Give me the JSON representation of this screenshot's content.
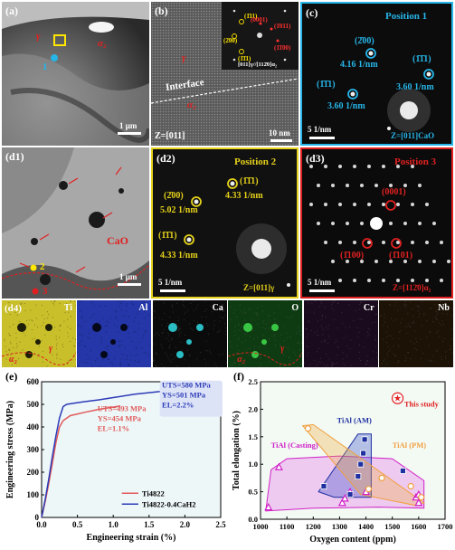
{
  "panels": {
    "a": {
      "label": "(a)",
      "gamma": "γ",
      "alpha2": "α₂",
      "marker": "1",
      "scale": "1 μm"
    },
    "b": {
      "label": "(b)",
      "gamma": "γ",
      "alpha2": "α₂",
      "interface": "Interface",
      "zone": "Z=[011]",
      "scale": "10 nm",
      "inset_spots_yellow": [
        "(1̄11)",
        "(2̄00)",
        "(1̄1̄1)"
      ],
      "inset_spots_red": [
        "(0001)",
        "(1̄011)",
        "(1̄1̄00)"
      ],
      "inset_zone": "[011]γ//[112̄0]α₂"
    },
    "c": {
      "label": "(c)",
      "title": "Position 1",
      "spots": [
        {
          "hkl": "(2̄00)",
          "d": "4.16 1/nm"
        },
        {
          "hkl": "(1̄1̄1)",
          "d": "3.60 1/nm"
        },
        {
          "hkl": "(1̄1̄1)",
          "d": "3.60 1/nm"
        }
      ],
      "scale": "5 1/nm",
      "zone": "Z=[011]CaO"
    },
    "d1": {
      "label": "(d1)",
      "phase": "CaO",
      "marker2": "2",
      "marker3": "3",
      "scale": "1 μm",
      "gamma": "γ"
    },
    "d2": {
      "label": "(d2)",
      "title": "Position 2",
      "spots": [
        {
          "hkl": "(2̄00)",
          "d": "5.02 1/nm"
        },
        {
          "hkl": "(1̄1̄1)",
          "d": "4.33 1/nm"
        },
        {
          "hkl": "(1̄1̄1)",
          "d": "4.33 1/nm"
        }
      ],
      "scale": "5 1/nm",
      "zone": "Z=[011]γ"
    },
    "d3": {
      "label": "(d3)",
      "title": "Position 3",
      "spots": [
        "(0001)",
        "(1̄100)",
        "(1̄101)"
      ],
      "scale": "5 1/nm",
      "zone": "Z=[112̄0]α₂"
    },
    "d4": {
      "label": "(d4)",
      "gamma": "γ",
      "alpha2": "α₂",
      "maps": [
        {
          "element": "Ti",
          "color": "#c9bf2a"
        },
        {
          "element": "Al",
          "color": "#2436a8"
        },
        {
          "element": "Ca",
          "color": "#0b0b0b"
        },
        {
          "element": "O",
          "color": "#0f3b12"
        },
        {
          "element": "Cr",
          "color": "#1a0b1e"
        },
        {
          "element": "Nb",
          "color": "#1c1206"
        }
      ]
    }
  },
  "chart_data": [
    {
      "type": "line",
      "panel_label": "(e)",
      "xlabel": "Engineering strain (%)",
      "ylabel": "Engineering stress (MPa)",
      "xlim": [
        0,
        2.5
      ],
      "ylim": [
        0,
        600
      ],
      "xticks": [
        "0.0",
        "0.5",
        "1.0",
        "1.5",
        "2.0",
        "2.5"
      ],
      "yticks": [
        "0",
        "100",
        "200",
        "300",
        "400",
        "500",
        "600"
      ],
      "legend_position": "bottom-right",
      "series": [
        {
          "name": "Ti4822",
          "color": "#e05a5a",
          "x": [
            0,
            0.05,
            0.1,
            0.15,
            0.2,
            0.25,
            0.3,
            0.4,
            0.6,
            0.8,
            1.0,
            1.1
          ],
          "y": [
            0,
            70,
            150,
            240,
            330,
            400,
            428,
            450,
            465,
            478,
            488,
            493
          ],
          "annotation": [
            "UTS=493 MPa",
            "YS=454 MPa",
            "EL=1.1%"
          ]
        },
        {
          "name": "Ti4822-0.4CaH2",
          "color": "#2b3bb8",
          "x": [
            0,
            0.05,
            0.1,
            0.15,
            0.2,
            0.25,
            0.3,
            0.35,
            0.45,
            0.6,
            0.8,
            1.0,
            1.3,
            1.6,
            1.9,
            2.1,
            2.2
          ],
          "y": [
            0,
            80,
            170,
            270,
            360,
            440,
            490,
            500,
            505,
            512,
            520,
            530,
            545,
            555,
            565,
            575,
            580
          ],
          "annotation": [
            "UTS=580 MPa",
            "YS=501 MPa",
            "EL=2.2%"
          ]
        }
      ]
    },
    {
      "type": "scatter",
      "panel_label": "(f)",
      "xlabel": "Oxygen content (ppm)",
      "ylabel": "Total elongation (%)",
      "xlim": [
        1000,
        1700
      ],
      "ylim": [
        0,
        2.5
      ],
      "xticks": [
        "1000",
        "1100",
        "1200",
        "1300",
        "1400",
        "1500",
        "1600",
        "1700"
      ],
      "yticks": [
        "0.0",
        "0.5",
        "1.0",
        "1.5",
        "2.0",
        "2.5"
      ],
      "groups": [
        {
          "name": "TiAl (Casting)",
          "color": "#d020c8",
          "marker": "triangle",
          "points": [
            [
              1030,
              0.22
            ],
            [
              1070,
              0.95
            ],
            [
              1310,
              0.3
            ],
            [
              1320,
              0.38
            ],
            [
              1340,
              0.5
            ],
            [
              1400,
              0.5
            ],
            [
              1590,
              0.4
            ],
            [
              1600,
              0.3
            ],
            [
              1600,
              0.45
            ]
          ]
        },
        {
          "name": "TiAl (AM)",
          "color": "#1e2fa0",
          "marker": "square",
          "points": [
            [
              1240,
              0.6
            ],
            [
              1340,
              0.45
            ],
            [
              1370,
              0.78
            ],
            [
              1380,
              1.0
            ],
            [
              1390,
              1.2
            ],
            [
              1395,
              1.45
            ],
            [
              1540,
              0.88
            ]
          ]
        },
        {
          "name": "TiAl (PM)",
          "color": "#f0a040",
          "marker": "circle",
          "points": [
            [
              1180,
              1.65
            ],
            [
              1410,
              0.55
            ],
            [
              1460,
              0.75
            ],
            [
              1570,
              0.6
            ],
            [
              1610,
              0.4
            ]
          ]
        },
        {
          "name": "This study",
          "color": "#e02020",
          "marker": "star",
          "points": [
            [
              1520,
              2.2
            ]
          ]
        }
      ]
    }
  ]
}
